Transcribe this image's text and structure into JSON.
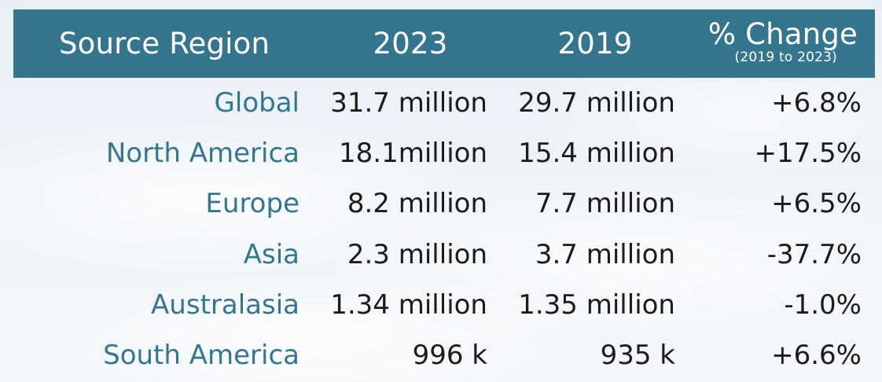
{
  "chart_data": {
    "type": "table",
    "columns": [
      "Source Region",
      "2023",
      "2019",
      "% Change"
    ],
    "column_subtitle": "(2019 to 2023)",
    "rows": [
      {
        "region": "Global",
        "y2023": "31.7 million",
        "y2019": "29.7 million",
        "change": "+6.8%"
      },
      {
        "region": "North America",
        "y2023": "18.1million",
        "y2019": "15.4 million",
        "change": "+17.5%"
      },
      {
        "region": "Europe",
        "y2023": "8.2 million",
        "y2019": "7.7 million",
        "change": "+6.5%"
      },
      {
        "region": "Asia",
        "y2023": "2.3 million",
        "y2019": "3.7 million",
        "change": "-37.7%"
      },
      {
        "region": "Australasia",
        "y2023": "1.34 million",
        "y2019": "1.35 million",
        "change": "-1.0%"
      },
      {
        "region": "South America",
        "y2023": "996 k",
        "y2019": "935 k",
        "change": "+6.6%"
      }
    ]
  },
  "colors": {
    "header_bg": "#35758e",
    "header_text": "#ffffff",
    "region_text": "#35758e",
    "value_text": "#1c1c1c"
  }
}
